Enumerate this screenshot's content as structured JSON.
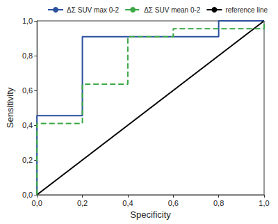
{
  "chart_data": {
    "type": "line",
    "x_label": "Specificity",
    "y_label": "Sensitivity",
    "xlim": [
      0,
      1
    ],
    "ylim": [
      0,
      1
    ],
    "xticks": [
      {
        "value": 0,
        "label": "0,0"
      },
      {
        "value": 0.2,
        "label": "0,2"
      },
      {
        "value": 0.4,
        "label": "0,4"
      },
      {
        "value": 0.6,
        "label": "0,6"
      },
      {
        "value": 0.8,
        "label": "0,8"
      },
      {
        "value": 1,
        "label": "1,0"
      }
    ],
    "yticks": [
      {
        "value": 0,
        "label": "0,0"
      },
      {
        "value": 0.2,
        "label": "0,2"
      },
      {
        "value": 0.4,
        "label": "0,4"
      },
      {
        "value": 0.6,
        "label": "0,6"
      },
      {
        "value": 0.8,
        "label": "0,8"
      },
      {
        "value": 1,
        "label": "1,0"
      }
    ],
    "grid": false,
    "legend": "upper right",
    "series": [
      {
        "name": "ΔΣ SUV max 0-2",
        "color": "#2a4f9e",
        "line_style": "solid",
        "x": [
          0,
          0,
          0.2,
          0.2,
          0.8,
          0.8,
          1
        ],
        "values": [
          0,
          0.455,
          0.455,
          0.909,
          0.909,
          1,
          1
        ]
      },
      {
        "name": "ΔΣ SUV mean 0-2",
        "color": "#3aa845",
        "line_style": "dashed",
        "x": [
          0,
          0,
          0.2,
          0.2,
          0.4,
          0.4,
          0.6,
          0.6,
          1,
          1
        ],
        "values": [
          0,
          0.41,
          0.41,
          0.636,
          0.636,
          0.909,
          0.909,
          0.955,
          0.955,
          1
        ]
      },
      {
        "name": "reference line",
        "color": "#000000",
        "line_style": "solid",
        "x": [
          0,
          1
        ],
        "values": [
          0,
          1
        ]
      }
    ]
  }
}
